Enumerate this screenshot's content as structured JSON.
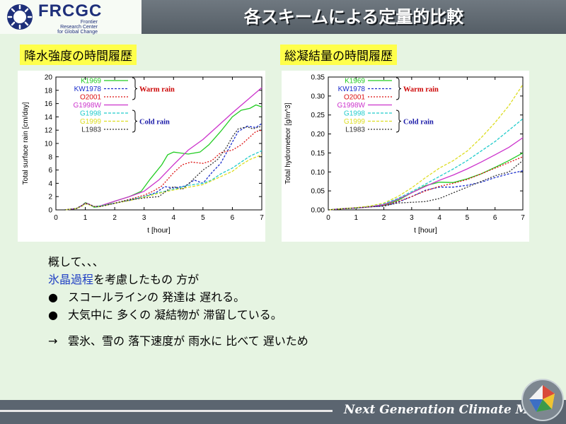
{
  "header": {
    "logo_text": "FRCGC",
    "logo_sub": [
      "Frontier",
      "Research Center",
      "for Global Change"
    ],
    "title": "各スキームによる定量的比較"
  },
  "panels": {
    "left_title": "降水強度の時間履歴",
    "right_title": "総凝結量の時間履歴"
  },
  "annotations": {
    "warm": "Warm rain",
    "cold": "Cold rain",
    "warm_color": "#cc0000",
    "cold_color": "#1a1aa8"
  },
  "chart_data": [
    {
      "type": "line",
      "xlabel": "t [hour]",
      "ylabel": "Total surface rain [cm/day]",
      "xlim": [
        0,
        7
      ],
      "ylim": [
        0,
        20
      ],
      "xticks": [
        0,
        1,
        2,
        3,
        4,
        5,
        6,
        7
      ],
      "yticks": [
        0,
        2,
        4,
        6,
        8,
        10,
        12,
        14,
        16,
        18,
        20
      ],
      "legend": "top-left",
      "grid": false,
      "series": [
        {
          "name": "K1969",
          "color": "#22cc22",
          "dash": "",
          "x": [
            0.3,
            0.7,
            0.9,
            1.0,
            1.1,
            1.3,
            1.5,
            2.0,
            2.5,
            2.9,
            3.2,
            3.6,
            3.8,
            4.0,
            4.5,
            4.9,
            5.2,
            5.6,
            6.0,
            6.3,
            6.6,
            6.8,
            7.0
          ],
          "y": [
            0,
            0.2,
            0.7,
            1.1,
            0.9,
            0.4,
            0.5,
            1.3,
            2.0,
            2.8,
            4.6,
            6.8,
            8.3,
            8.7,
            8.4,
            8.7,
            9.8,
            11.8,
            14.0,
            15.0,
            15.3,
            15.8,
            15.5
          ]
        },
        {
          "name": "KW1978",
          "color": "#1a2dcc",
          "dash": "3,2",
          "x": [
            0.3,
            0.7,
            0.9,
            1.0,
            1.1,
            1.3,
            1.5,
            2.0,
            2.5,
            3.0,
            3.4,
            3.7,
            4.0,
            4.4,
            4.7,
            5.0,
            5.3,
            5.6,
            5.9,
            6.2,
            6.5,
            6.8,
            7.0
          ],
          "y": [
            0,
            0.2,
            0.7,
            1.0,
            0.9,
            0.5,
            0.5,
            1.0,
            1.4,
            2.0,
            2.6,
            3.5,
            3.3,
            3.6,
            4.5,
            4.0,
            5.6,
            7.0,
            9.4,
            11.8,
            12.6,
            12.4,
            13.0
          ]
        },
        {
          "name": "O2001",
          "color": "#dd1111",
          "dash": "2,2",
          "x": [
            0.3,
            0.7,
            0.9,
            1.0,
            1.1,
            1.3,
            1.5,
            2.0,
            2.5,
            3.0,
            3.3,
            3.6,
            4.0,
            4.3,
            4.6,
            5.0,
            5.3,
            5.6,
            6.0,
            6.3,
            6.6,
            6.8,
            7.0
          ],
          "y": [
            0,
            0.2,
            0.7,
            1.0,
            0.9,
            0.5,
            0.5,
            1.0,
            1.6,
            2.2,
            2.8,
            3.6,
            5.6,
            6.8,
            7.2,
            7.0,
            7.4,
            8.6,
            9.0,
            9.8,
            11.0,
            11.8,
            12.0
          ]
        },
        {
          "name": "G1998W",
          "color": "#cc33cc",
          "dash": "",
          "x": [
            0.3,
            0.7,
            0.9,
            1.0,
            1.1,
            1.3,
            1.5,
            2.0,
            2.5,
            3.0,
            3.5,
            4.0,
            4.5,
            5.0,
            5.5,
            6.0,
            6.5,
            7.0
          ],
          "y": [
            0,
            0.2,
            0.7,
            1.0,
            0.9,
            0.5,
            0.6,
            1.3,
            2.0,
            2.8,
            4.5,
            6.8,
            9.0,
            10.6,
            12.6,
            14.6,
            16.5,
            18.4
          ]
        },
        {
          "name": "G1998",
          "color": "#22cccc",
          "dash": "4,2",
          "x": [
            0.3,
            0.7,
            0.9,
            1.0,
            1.1,
            1.3,
            1.5,
            2.0,
            2.5,
            3.0,
            3.5,
            4.0,
            4.5,
            5.0,
            5.3,
            5.6,
            6.0,
            6.3,
            6.6,
            7.0
          ],
          "y": [
            0,
            0.2,
            0.6,
            0.9,
            0.8,
            0.5,
            0.6,
            1.0,
            1.5,
            2.0,
            2.6,
            3.1,
            3.7,
            4.0,
            4.5,
            5.4,
            6.3,
            7.2,
            8.1,
            8.9
          ]
        },
        {
          "name": "G1999",
          "color": "#dddd22",
          "dash": "4,2",
          "x": [
            0.3,
            0.7,
            0.9,
            1.0,
            1.1,
            1.3,
            1.5,
            2.0,
            2.5,
            3.0,
            3.5,
            4.0,
            4.5,
            5.0,
            5.5,
            6.0,
            6.3,
            6.6,
            7.0
          ],
          "y": [
            0,
            0.2,
            0.6,
            0.9,
            0.8,
            0.5,
            0.5,
            1.0,
            1.4,
            1.9,
            2.5,
            3.0,
            3.4,
            3.8,
            4.8,
            5.8,
            6.8,
            7.6,
            8.3
          ]
        },
        {
          "name": "L1983",
          "color": "#333333",
          "dash": "2,2",
          "x": [
            0.3,
            0.7,
            0.9,
            1.0,
            1.1,
            1.3,
            1.5,
            2.0,
            2.5,
            3.0,
            3.5,
            3.8,
            4.0,
            4.3,
            4.6,
            5.0,
            5.2,
            5.5,
            5.8,
            6.0,
            6.2,
            6.5,
            6.7,
            7.0
          ],
          "y": [
            0,
            0.2,
            0.7,
            1.0,
            0.9,
            0.5,
            0.5,
            1.0,
            1.5,
            1.8,
            2.0,
            3.0,
            3.5,
            3.1,
            4.3,
            6.0,
            6.6,
            7.6,
            9.4,
            11.0,
            12.2,
            12.5,
            12.2,
            12.6
          ]
        }
      ]
    },
    {
      "type": "line",
      "xlabel": "t [hour]",
      "ylabel": "Total hydrometeor [g/m^3]",
      "xlim": [
        0,
        7
      ],
      "ylim": [
        0,
        0.35
      ],
      "xticks": [
        0,
        1,
        2,
        3,
        4,
        5,
        6,
        7
      ],
      "yticks": [
        0,
        0.05,
        0.1,
        0.15,
        0.2,
        0.25,
        0.3,
        0.35
      ],
      "ytick_labels": [
        "0.00",
        "0.05",
        "0.10",
        "0.15",
        "0.20",
        "0.25",
        "0.30",
        "0.35"
      ],
      "legend": "top-left",
      "grid": false,
      "series": [
        {
          "name": "K1969",
          "color": "#22cc22",
          "dash": "",
          "x": [
            0,
            0.5,
            1.0,
            1.5,
            2.0,
            2.5,
            3.0,
            3.5,
            4.0,
            4.5,
            5.0,
            5.5,
            6.0,
            6.5,
            7.0
          ],
          "y": [
            0,
            0.003,
            0.005,
            0.008,
            0.012,
            0.025,
            0.045,
            0.064,
            0.073,
            0.072,
            0.082,
            0.095,
            0.112,
            0.13,
            0.15
          ]
        },
        {
          "name": "KW1978",
          "color": "#1a2dcc",
          "dash": "3,2",
          "x": [
            0,
            0.5,
            1.0,
            1.5,
            2.0,
            2.5,
            3.0,
            3.5,
            4.0,
            4.5,
            5.0,
            5.5,
            6.0,
            6.5,
            7.0
          ],
          "y": [
            0,
            0.003,
            0.005,
            0.008,
            0.01,
            0.02,
            0.035,
            0.052,
            0.06,
            0.06,
            0.065,
            0.073,
            0.085,
            0.095,
            0.103
          ]
        },
        {
          "name": "O2001",
          "color": "#dd1111",
          "dash": "2,2",
          "x": [
            0,
            0.5,
            1.0,
            1.5,
            2.0,
            2.5,
            3.0,
            3.5,
            4.0,
            4.5,
            5.0,
            5.5,
            6.0,
            6.5,
            7.0
          ],
          "y": [
            0,
            0.003,
            0.005,
            0.008,
            0.012,
            0.022,
            0.035,
            0.05,
            0.062,
            0.07,
            0.08,
            0.095,
            0.11,
            0.125,
            0.14
          ]
        },
        {
          "name": "G1998W",
          "color": "#cc33cc",
          "dash": "",
          "x": [
            0,
            0.5,
            1.0,
            1.5,
            2.0,
            2.5,
            3.0,
            3.5,
            4.0,
            4.5,
            5.0,
            5.5,
            6.0,
            6.5,
            7.0
          ],
          "y": [
            0,
            0.003,
            0.005,
            0.008,
            0.014,
            0.028,
            0.045,
            0.062,
            0.078,
            0.092,
            0.108,
            0.126,
            0.145,
            0.165,
            0.19
          ]
        },
        {
          "name": "G1998",
          "color": "#22cccc",
          "dash": "4,2",
          "x": [
            0,
            0.5,
            1.0,
            1.5,
            2.0,
            2.5,
            3.0,
            3.5,
            4.0,
            4.5,
            5.0,
            5.5,
            6.0,
            6.5,
            7.0
          ],
          "y": [
            0,
            0.003,
            0.005,
            0.01,
            0.016,
            0.03,
            0.048,
            0.068,
            0.088,
            0.108,
            0.13,
            0.155,
            0.18,
            0.21,
            0.24
          ]
        },
        {
          "name": "G1999",
          "color": "#dddd22",
          "dash": "4,2",
          "x": [
            0,
            0.5,
            1.0,
            1.5,
            2.0,
            2.5,
            3.0,
            3.5,
            4.0,
            4.5,
            5.0,
            5.5,
            6.0,
            6.5,
            7.0
          ],
          "y": [
            0,
            0.003,
            0.006,
            0.01,
            0.018,
            0.035,
            0.058,
            0.085,
            0.11,
            0.13,
            0.155,
            0.19,
            0.23,
            0.275,
            0.33
          ]
        },
        {
          "name": "L1983",
          "color": "#333333",
          "dash": "2,2",
          "x": [
            0,
            0.5,
            1.0,
            1.5,
            2.0,
            2.5,
            3.0,
            3.5,
            4.0,
            4.5,
            5.0,
            5.5,
            6.0,
            6.5,
            7.0
          ],
          "y": [
            0,
            0.003,
            0.005,
            0.008,
            0.01,
            0.018,
            0.02,
            0.022,
            0.03,
            0.045,
            0.06,
            0.075,
            0.09,
            0.1,
            0.13
          ]
        }
      ]
    }
  ],
  "body": {
    "line1": "概して、、、",
    "line2_hl": "氷晶過程",
    "line2_rest": "を考慮したもの 方が",
    "bullet_glyph": "●",
    "bullet1": "スコールラインの 発達は 遅れる。",
    "bullet2": "大気中に 多くの 凝結物が 滞留している。",
    "arrow": "→",
    "conclusion": "雲氷、雪の 落下速度が 雨水に 比べて 遅いため"
  },
  "footer": {
    "text": "Next Generation Climate Model"
  }
}
